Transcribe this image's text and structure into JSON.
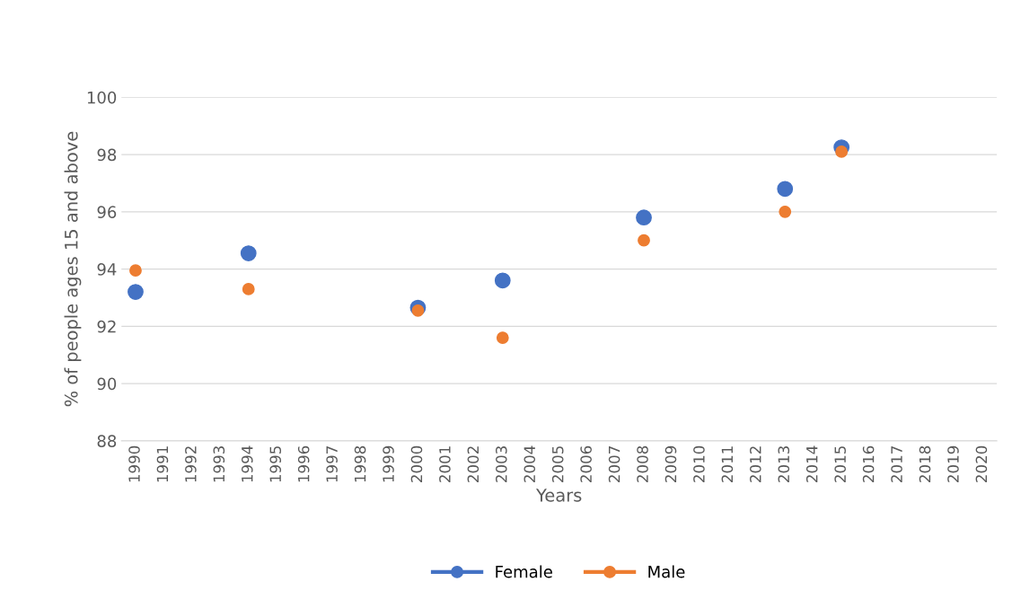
{
  "chart_data": {
    "type": "scatter",
    "xlabel": "Years",
    "ylabel": "% of people ages 15 and above",
    "categories": [
      "1990",
      "1991",
      "1992",
      "1993",
      "1994",
      "1995",
      "1996",
      "1997",
      "1998",
      "1999",
      "2000",
      "2001",
      "2002",
      "2003",
      "2004",
      "2005",
      "2006",
      "2007",
      "2008",
      "2009",
      "2010",
      "2011",
      "2012",
      "2013",
      "2014",
      "2015",
      "2016",
      "2017",
      "2018",
      "2019",
      "2020"
    ],
    "series": [
      {
        "name": "Female",
        "color": "#4472c4",
        "values": [
          93.2,
          null,
          null,
          null,
          94.55,
          null,
          null,
          null,
          null,
          null,
          92.65,
          null,
          null,
          93.6,
          null,
          null,
          null,
          null,
          95.8,
          null,
          null,
          null,
          null,
          96.8,
          null,
          98.25,
          null,
          null,
          null,
          null,
          null
        ]
      },
      {
        "name": "Male",
        "color": "#ed7d31",
        "values": [
          93.95,
          null,
          null,
          null,
          93.3,
          null,
          null,
          null,
          null,
          null,
          92.55,
          null,
          null,
          91.6,
          null,
          null,
          null,
          null,
          95.0,
          null,
          null,
          null,
          null,
          96.0,
          null,
          98.1,
          null,
          null,
          null,
          null,
          null
        ]
      }
    ],
    "ylim": [
      88,
      100
    ],
    "yticks": [
      88,
      90,
      92,
      94,
      96,
      98,
      100
    ],
    "grid": "y",
    "legend": "bottom",
    "marker": "circle",
    "line_style": "solid"
  }
}
